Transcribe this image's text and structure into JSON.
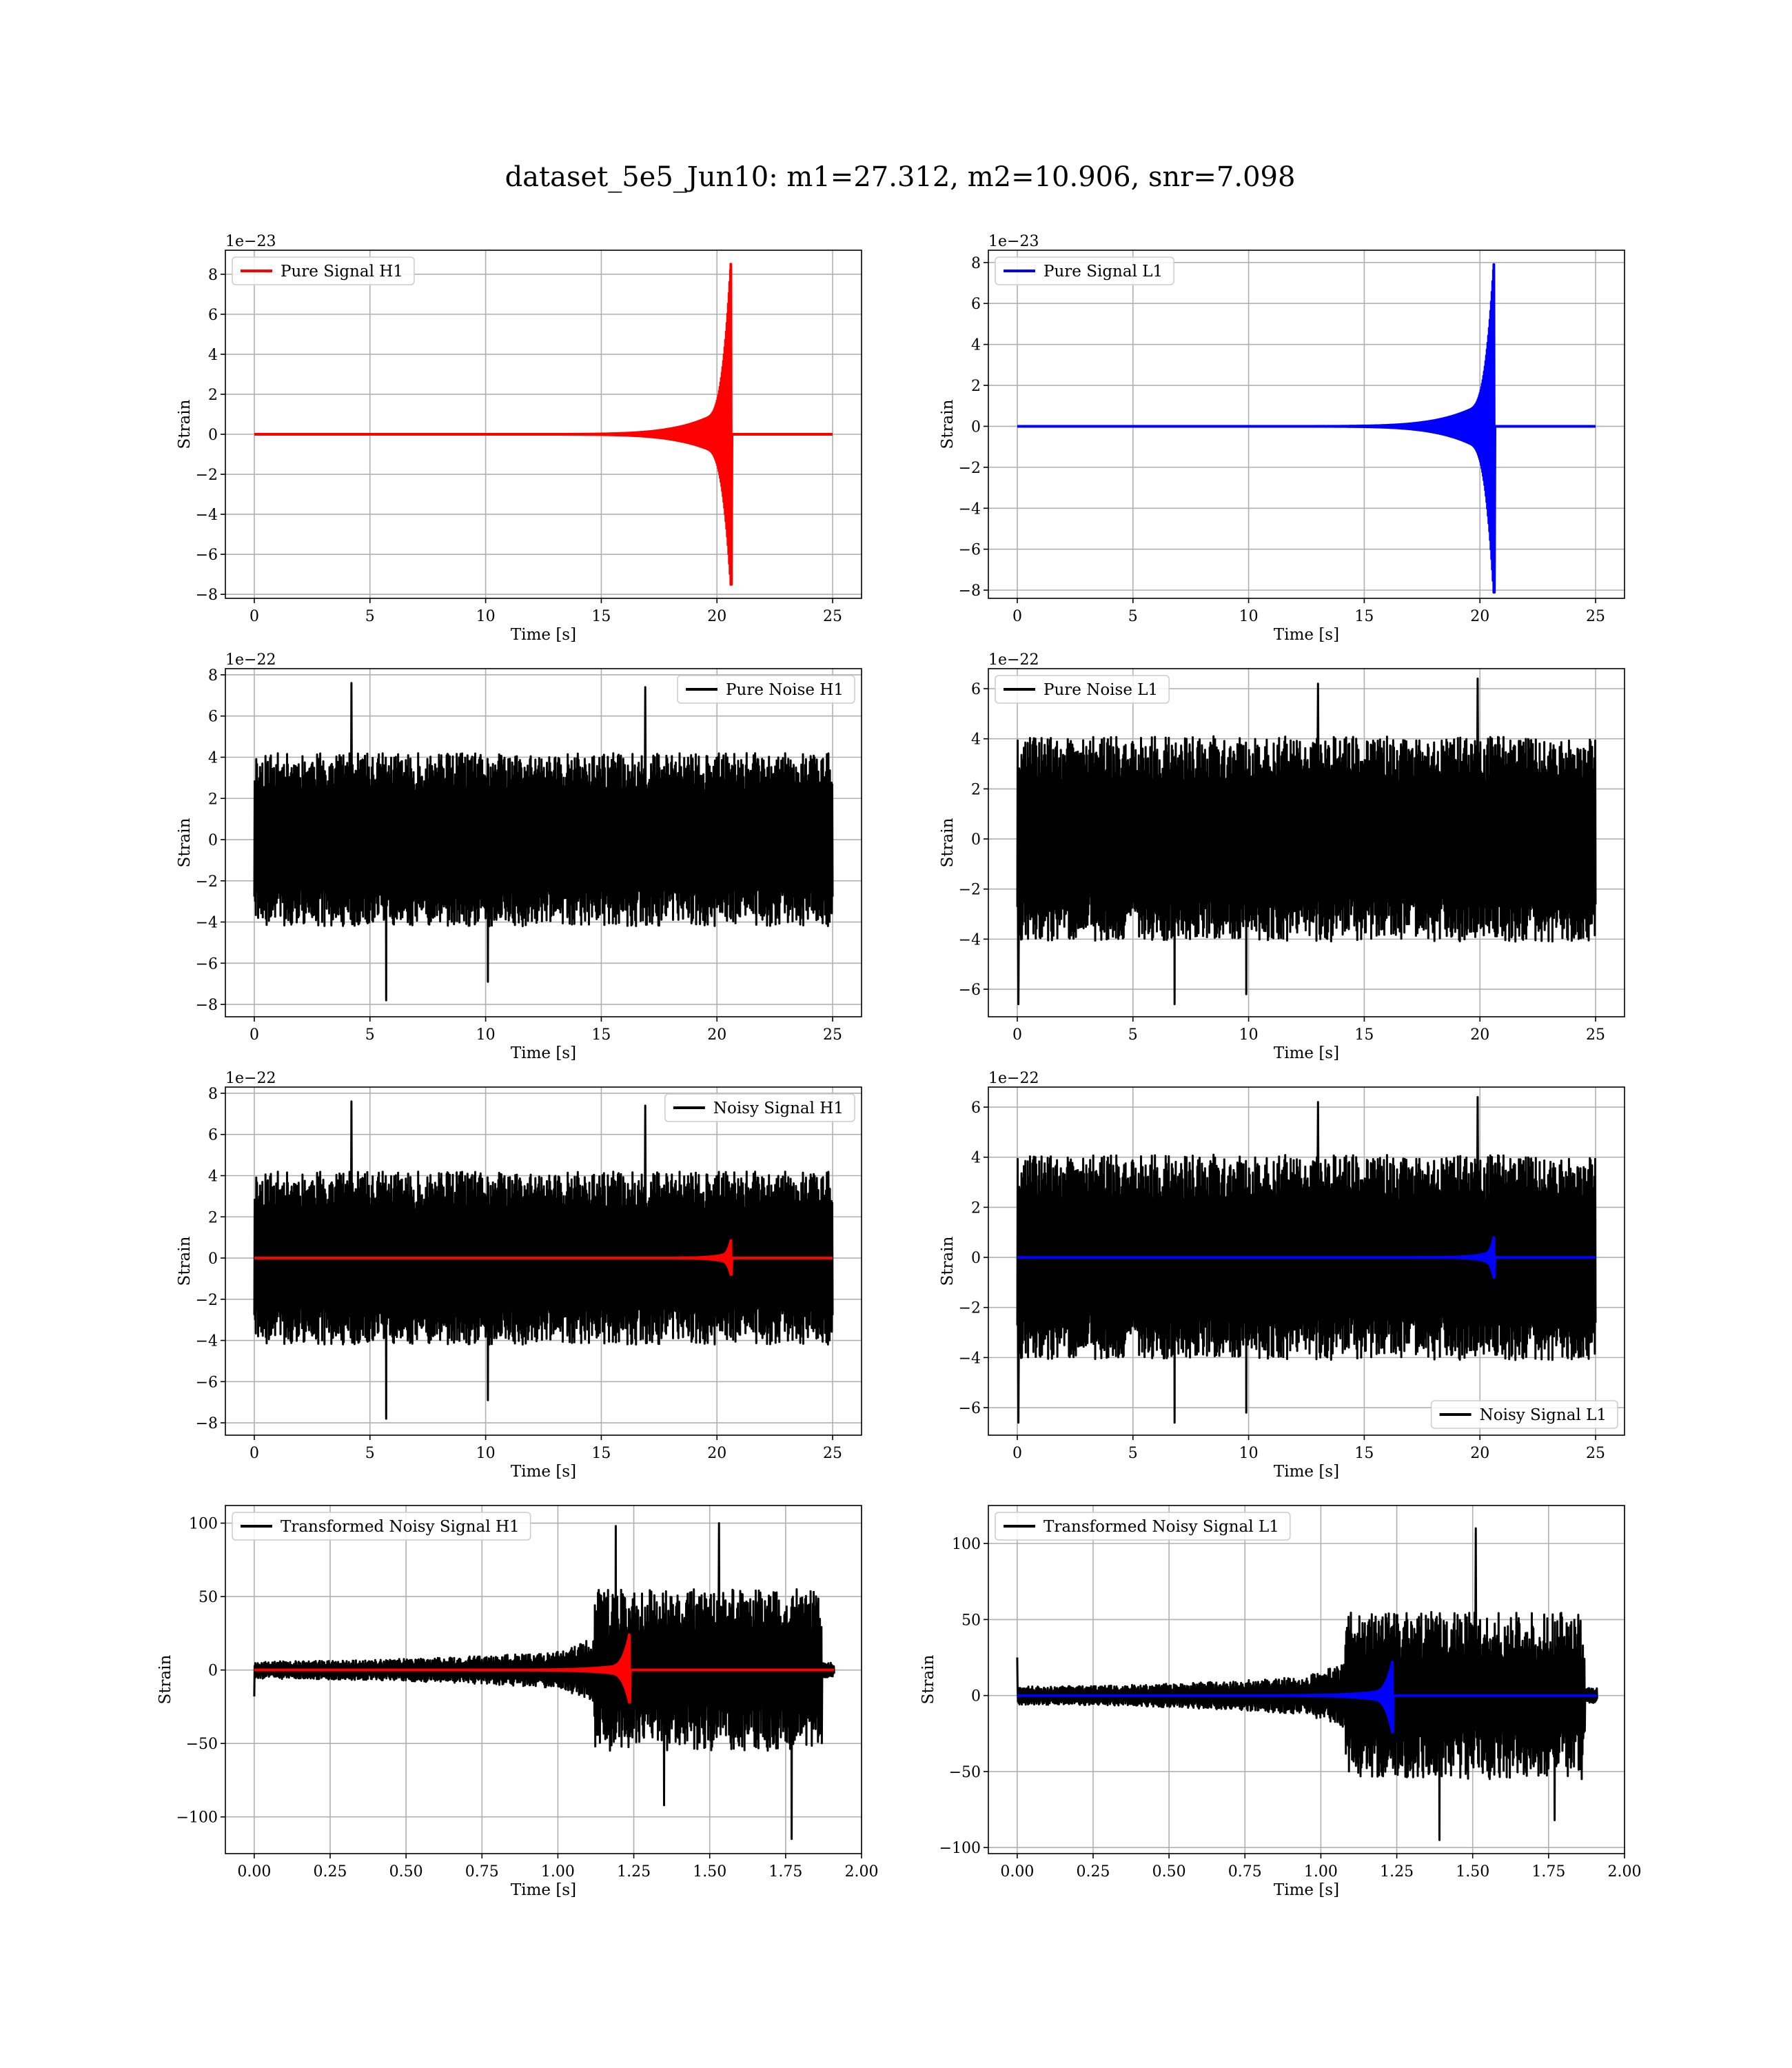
{
  "figure": {
    "title": "dataset_5e5_Jun10: m1=27.312, m2=10.906, snr=7.098"
  },
  "chart_data": [
    {
      "id": "p00",
      "type": "line",
      "legend": "Pure Signal H1",
      "legend_loc": "upper-left",
      "xlabel": "Time [s]",
      "ylabel": "Strain",
      "offset_text": "1e−23",
      "xlim": [
        -1.25,
        26.25
      ],
      "ylim": [
        -8.2,
        9.2
      ],
      "xticks": [
        0,
        5,
        10,
        15,
        20,
        25
      ],
      "xtick_labels": [
        "0",
        "5",
        "10",
        "15",
        "20",
        "25"
      ],
      "yticks": [
        -8,
        -6,
        -4,
        -2,
        0,
        2,
        4,
        6,
        8
      ],
      "ytick_labels": [
        "−8",
        "−6",
        "−4",
        "−2",
        "0",
        "2",
        "4",
        "6",
        "8"
      ],
      "grid": true,
      "series": [
        {
          "name": "Pure Signal H1",
          "color": "#ff0000",
          "kind": "chirp",
          "x_start": 0,
          "x_end": 25,
          "x_onset": 10,
          "x_merge": 20.6,
          "shoulder": 1.5,
          "peak_pos": 8.5,
          "peak_neg": -7.5,
          "post_amp": 0,
          "width": 4
        }
      ]
    },
    {
      "id": "p01",
      "type": "line",
      "legend": "Pure Signal L1",
      "legend_loc": "upper-left",
      "xlabel": "Time [s]",
      "ylabel": "Strain",
      "offset_text": "1e−23",
      "xlim": [
        -1.25,
        26.25
      ],
      "ylim": [
        -8.4,
        8.6
      ],
      "xticks": [
        0,
        5,
        10,
        15,
        20,
        25
      ],
      "xtick_labels": [
        "0",
        "5",
        "10",
        "15",
        "20",
        "25"
      ],
      "yticks": [
        -8,
        -6,
        -4,
        -2,
        0,
        2,
        4,
        6,
        8
      ],
      "ytick_labels": [
        "−8",
        "−6",
        "−4",
        "−2",
        "0",
        "2",
        "4",
        "6",
        "8"
      ],
      "grid": true,
      "series": [
        {
          "name": "Pure Signal L1",
          "color": "#0000ff",
          "kind": "chirp",
          "x_start": 0,
          "x_end": 25,
          "x_onset": 10,
          "x_merge": 20.6,
          "shoulder": 1.5,
          "peak_pos": 7.9,
          "peak_neg": -8.1,
          "post_amp": 0,
          "width": 4
        }
      ]
    },
    {
      "id": "p10",
      "type": "line",
      "legend": "Pure Noise H1",
      "legend_loc": "upper-right",
      "xlabel": "Time [s]",
      "ylabel": "Strain",
      "offset_text": "1e−22",
      "xlim": [
        -1.25,
        26.25
      ],
      "ylim": [
        -8.6,
        8.3
      ],
      "xticks": [
        0,
        5,
        10,
        15,
        20,
        25
      ],
      "xtick_labels": [
        "0",
        "5",
        "10",
        "15",
        "20",
        "25"
      ],
      "yticks": [
        -8,
        -6,
        -4,
        -2,
        0,
        2,
        4,
        6,
        8
      ],
      "ytick_labels": [
        "−8",
        "−6",
        "−4",
        "−2",
        "0",
        "2",
        "4",
        "6",
        "8"
      ],
      "grid": true,
      "series": [
        {
          "name": "Pure Noise H1",
          "color": "#000000",
          "kind": "noise",
          "x_start": 0,
          "x_end": 25,
          "envelope_amp": 4.2,
          "spikes": [
            [
              4.2,
              7.6
            ],
            [
              5.7,
              -7.8
            ],
            [
              10.1,
              -6.9
            ],
            [
              16.9,
              7.4
            ]
          ],
          "seed": 11,
          "width": 3
        }
      ]
    },
    {
      "id": "p11",
      "type": "line",
      "legend": "Pure Noise L1",
      "legend_loc": "upper-left",
      "xlabel": "Time [s]",
      "ylabel": "Strain",
      "offset_text": "1e−22",
      "xlim": [
        -1.25,
        26.25
      ],
      "ylim": [
        -7.1,
        6.8
      ],
      "xticks": [
        0,
        5,
        10,
        15,
        20,
        25
      ],
      "xtick_labels": [
        "0",
        "5",
        "10",
        "15",
        "20",
        "25"
      ],
      "yticks": [
        -6,
        -4,
        -2,
        0,
        2,
        4,
        6
      ],
      "ytick_labels": [
        "−6",
        "−4",
        "−2",
        "0",
        "2",
        "4",
        "6"
      ],
      "grid": true,
      "series": [
        {
          "name": "Pure Noise L1",
          "color": "#000000",
          "kind": "noise",
          "x_start": 0,
          "x_end": 25,
          "envelope_amp": 4.1,
          "spikes": [
            [
              0.05,
              -6.6
            ],
            [
              6.8,
              -6.6
            ],
            [
              9.9,
              -6.2
            ],
            [
              13.0,
              6.2
            ],
            [
              19.9,
              6.4
            ]
          ],
          "seed": 29,
          "width": 3
        }
      ]
    },
    {
      "id": "p20",
      "type": "line",
      "legend": "Noisy Signal H1",
      "legend_loc": "upper-right",
      "xlabel": "Time [s]",
      "ylabel": "Strain",
      "offset_text": "1e−22",
      "xlim": [
        -1.25,
        26.25
      ],
      "ylim": [
        -8.6,
        8.3
      ],
      "xticks": [
        0,
        5,
        10,
        15,
        20,
        25
      ],
      "xtick_labels": [
        "0",
        "5",
        "10",
        "15",
        "20",
        "25"
      ],
      "yticks": [
        -8,
        -6,
        -4,
        -2,
        0,
        2,
        4,
        6,
        8
      ],
      "ytick_labels": [
        "−8",
        "−6",
        "−4",
        "−2",
        "0",
        "2",
        "4",
        "6",
        "8"
      ],
      "grid": true,
      "series": [
        {
          "name": "Noisy Signal H1",
          "color": "#000000",
          "kind": "noise",
          "x_start": 0,
          "x_end": 25,
          "envelope_amp": 4.2,
          "spikes": [
            [
              4.2,
              7.6
            ],
            [
              5.7,
              -7.8
            ],
            [
              10.1,
              -6.9
            ],
            [
              16.9,
              7.4
            ]
          ],
          "seed": 11,
          "width": 3
        },
        {
          "name": "",
          "color": "#ff0000",
          "kind": "chirp",
          "x_start": 0,
          "x_end": 25,
          "x_onset": 16.5,
          "x_merge": 20.6,
          "shoulder": 0.25,
          "peak_pos": 0.85,
          "peak_neg": -0.8,
          "post_amp": 0,
          "width": 4
        }
      ]
    },
    {
      "id": "p21",
      "type": "line",
      "legend": "Noisy Signal L1",
      "legend_loc": "lower-right",
      "xlabel": "Time [s]",
      "ylabel": "Strain",
      "offset_text": "1e−22",
      "xlim": [
        -1.25,
        26.25
      ],
      "ylim": [
        -7.1,
        6.8
      ],
      "xticks": [
        0,
        5,
        10,
        15,
        20,
        25
      ],
      "xtick_labels": [
        "0",
        "5",
        "10",
        "15",
        "20",
        "25"
      ],
      "yticks": [
        -6,
        -4,
        -2,
        0,
        2,
        4,
        6
      ],
      "ytick_labels": [
        "−6",
        "−4",
        "−2",
        "0",
        "2",
        "4",
        "6"
      ],
      "grid": true,
      "series": [
        {
          "name": "Noisy Signal L1",
          "color": "#000000",
          "kind": "noise",
          "x_start": 0,
          "x_end": 25,
          "envelope_amp": 4.1,
          "spikes": [
            [
              0.05,
              -6.6
            ],
            [
              6.8,
              -6.6
            ],
            [
              9.9,
              -6.2
            ],
            [
              13.0,
              6.2
            ],
            [
              19.9,
              6.4
            ]
          ],
          "seed": 29,
          "width": 3
        },
        {
          "name": "",
          "color": "#0000ff",
          "kind": "chirp",
          "x_start": 0,
          "x_end": 25,
          "x_onset": 16.5,
          "x_merge": 20.6,
          "shoulder": 0.25,
          "peak_pos": 0.8,
          "peak_neg": -0.8,
          "post_amp": 0,
          "width": 4
        }
      ]
    },
    {
      "id": "p30",
      "type": "line",
      "legend": "Transformed Noisy Signal H1",
      "legend_loc": "upper-left",
      "xlabel": "Time [s]",
      "ylabel": "Strain",
      "offset_text": "",
      "xlim": [
        -0.095,
        2.0
      ],
      "ylim": [
        -125,
        112
      ],
      "xticks": [
        0,
        0.25,
        0.5,
        0.75,
        1.0,
        1.25,
        1.5,
        1.75,
        2.0
      ],
      "xtick_labels": [
        "0.00",
        "0.25",
        "0.50",
        "0.75",
        "1.00",
        "1.25",
        "1.50",
        "1.75",
        "2.00"
      ],
      "yticks": [
        -100,
        -50,
        0,
        50,
        100
      ],
      "ytick_labels": [
        "−100",
        "−50",
        "0",
        "50",
        "100"
      ],
      "grid": true,
      "series": [
        {
          "name": "Transformed Noisy Signal H1",
          "color": "#000000",
          "kind": "tnoise",
          "x_start": 0,
          "x_end": 1.91,
          "x_rise": 1.0,
          "x_jump": 1.12,
          "x_cut": 1.87,
          "base_amp": 6,
          "pre_amp": 22,
          "post_amp": 55,
          "tail_amp": 5,
          "spikes": [
            [
              0.0,
              -18
            ],
            [
              1.19,
              98
            ],
            [
              1.35,
              -92
            ],
            [
              1.53,
              100
            ],
            [
              1.77,
              -115
            ]
          ],
          "seed": 53,
          "width": 3
        },
        {
          "name": "",
          "color": "#ff0000",
          "kind": "chirp",
          "x_start": 0,
          "x_end": 1.91,
          "x_onset": 0.6,
          "x_merge": 1.235,
          "shoulder": 4,
          "peak_pos": 24,
          "peak_neg": -22,
          "post_amp": 0,
          "width": 4
        }
      ]
    },
    {
      "id": "p31",
      "type": "line",
      "legend": "Transformed Noisy Signal L1",
      "legend_loc": "upper-left",
      "xlabel": "Time [s]",
      "ylabel": "Strain",
      "offset_text": "",
      "xlim": [
        -0.095,
        2.0
      ],
      "ylim": [
        -104,
        125
      ],
      "xticks": [
        0,
        0.25,
        0.5,
        0.75,
        1.0,
        1.25,
        1.5,
        1.75,
        2.0
      ],
      "xtick_labels": [
        "0.00",
        "0.25",
        "0.50",
        "0.75",
        "1.00",
        "1.25",
        "1.50",
        "1.75",
        "2.00"
      ],
      "yticks": [
        -100,
        -50,
        0,
        50,
        100
      ],
      "ytick_labels": [
        "−100",
        "−50",
        "0",
        "50",
        "100"
      ],
      "grid": true,
      "series": [
        {
          "name": "Transformed Noisy Signal L1",
          "color": "#000000",
          "kind": "tnoise",
          "x_start": 0,
          "x_end": 1.91,
          "x_rise": 0.95,
          "x_jump": 1.08,
          "x_cut": 1.87,
          "base_amp": 6,
          "pre_amp": 22,
          "post_amp": 55,
          "tail_amp": 5,
          "spikes": [
            [
              0.0,
              25
            ],
            [
              1.39,
              -95
            ],
            [
              1.51,
              110
            ],
            [
              1.77,
              -82
            ]
          ],
          "seed": 71,
          "width": 3
        },
        {
          "name": "",
          "color": "#0000ff",
          "kind": "chirp",
          "x_start": 0,
          "x_end": 1.91,
          "x_onset": 0.6,
          "x_merge": 1.235,
          "shoulder": 4,
          "peak_pos": 22,
          "peak_neg": -24,
          "post_amp": 0,
          "width": 4
        }
      ]
    }
  ]
}
